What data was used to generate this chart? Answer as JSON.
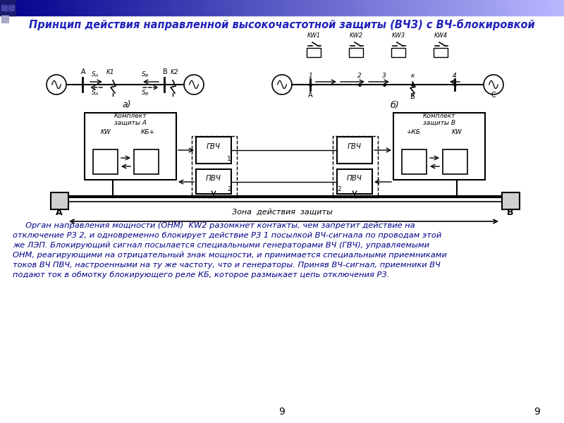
{
  "title": "Принцип действия направленной высокочастотной защиты (ВЧЗ) с ВЧ-блокировкой",
  "title_color": "#2222BB",
  "title_fontsize": 10.5,
  "bg_color": "#FFFFFF",
  "body_text_line1": "     Орган направления мощности (ОНМ)  KW2 разомкнет контакты, чем запретит действие на",
  "body_text_line2": "отключение РЗ 2, и одновременно блокирует действие РЗ 1 посылкой ВЧ-сигнала по проводам этой",
  "body_text_line3": "же ЛЭП. Блокирующий сигнал посылается специальными генераторами ВЧ (ГВЧ), управляемыми",
  "body_text_line4": "ОНМ, реагирующими на отрицательный знак мощности, и принимается специальными приемниками",
  "body_text_line5": "токов ВЧ ПВЧ, настроенными на ту же частоту, что и генераторы. Приняв ВЧ-сигнал, приемники ВЧ",
  "body_text_line6": "подают ток в обмотку блокирующего реле КБ, которое размыкает цепь отключения РЗ.",
  "body_text_color": "#000088",
  "body_fontsize": 8.2,
  "page_number": "9"
}
